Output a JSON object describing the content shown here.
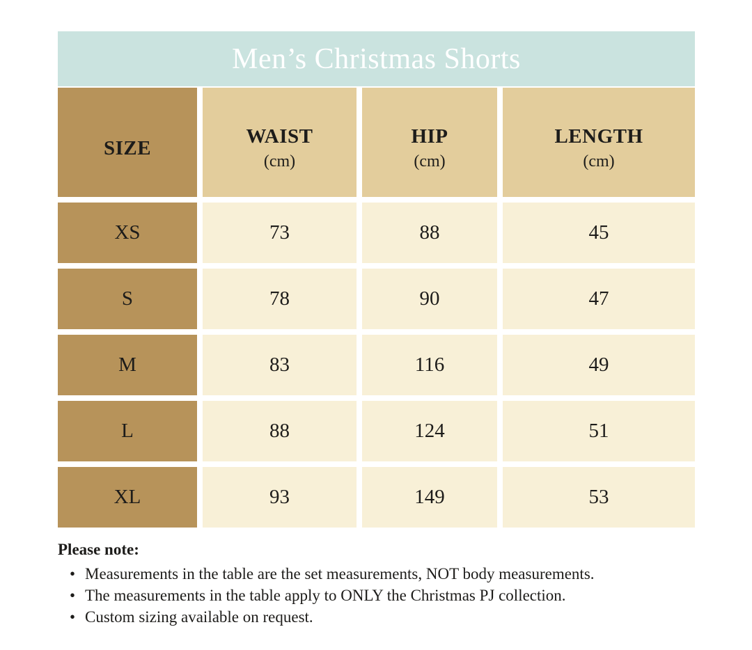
{
  "title": "Men’s Christmas Shorts",
  "colors": {
    "title_bar_bg": "#cae3df",
    "title_text": "#ffffff",
    "size_column_bg": "#b7935a",
    "header_cell_bg": "#e3cd9c",
    "data_cell_bg": "#f8f0d7",
    "text": "#1d1c1a",
    "page_bg": "#ffffff"
  },
  "table": {
    "headers": [
      {
        "label": "SIZE",
        "unit": ""
      },
      {
        "label": "WAIST",
        "unit": "(cm)"
      },
      {
        "label": "HIP",
        "unit": "(cm)"
      },
      {
        "label": "LENGTH",
        "unit": "(cm)"
      }
    ],
    "rows": [
      {
        "size": "XS",
        "waist": "73",
        "hip": "88",
        "length": "45"
      },
      {
        "size": "S",
        "waist": "78",
        "hip": "90",
        "length": "47"
      },
      {
        "size": "M",
        "waist": "83",
        "hip": "116",
        "length": "49"
      },
      {
        "size": "L",
        "waist": "88",
        "hip": "124",
        "length": "51"
      },
      {
        "size": "XL",
        "waist": "93",
        "hip": "149",
        "length": "53"
      }
    ]
  },
  "notes": {
    "heading": "Please note:",
    "items": [
      "Measurements in the table are the set measurements, NOT body measurements.",
      "The measurements in the table apply to ONLY the Christmas PJ collection.",
      "Custom sizing available on request."
    ]
  },
  "chart_data": {
    "type": "table",
    "title": "Men’s Christmas Shorts",
    "columns": [
      "SIZE",
      "WAIST (cm)",
      "HIP (cm)",
      "LENGTH (cm)"
    ],
    "rows": [
      [
        "XS",
        73,
        88,
        45
      ],
      [
        "S",
        78,
        90,
        47
      ],
      [
        "M",
        83,
        116,
        49
      ],
      [
        "L",
        88,
        124,
        51
      ],
      [
        "XL",
        93,
        149,
        53
      ]
    ]
  }
}
